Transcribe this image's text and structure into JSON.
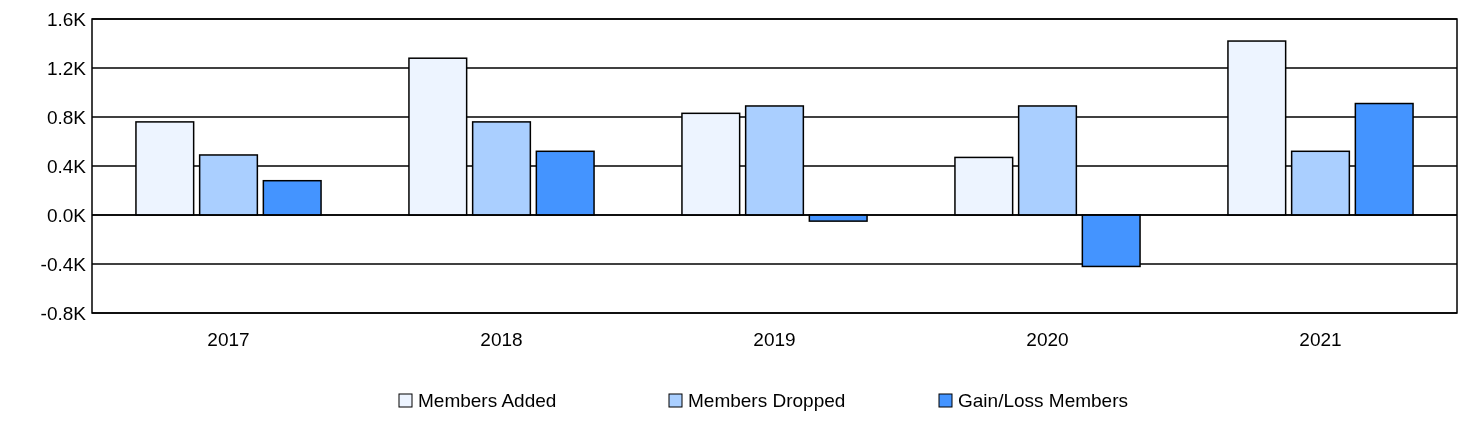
{
  "chart_data": {
    "type": "bar",
    "categories": [
      "2017",
      "2018",
      "2019",
      "2020",
      "2021"
    ],
    "series": [
      {
        "name": "Members Added",
        "color": "#edf4ff",
        "values": [
          0.76,
          1.28,
          0.83,
          0.47,
          1.42
        ]
      },
      {
        "name": "Members Dropped",
        "color": "#aacfff",
        "values": [
          0.49,
          0.76,
          0.89,
          0.89,
          0.52
        ]
      },
      {
        "name": "Gain/Loss Members",
        "color": "#4494ff",
        "values": [
          0.28,
          0.52,
          -0.05,
          -0.42,
          0.91
        ]
      }
    ],
    "ylim": [
      -0.8,
      1.6
    ],
    "yticks": [
      {
        "value": -0.8,
        "label": "-0.8K"
      },
      {
        "value": -0.4,
        "label": "-0.4K"
      },
      {
        "value": 0,
        "label": "0.0K"
      },
      {
        "value": 0.4,
        "label": "0.4K"
      },
      {
        "value": 0.8,
        "label": "0.8K"
      },
      {
        "value": 1.2,
        "label": "1.2K"
      },
      {
        "value": 1.6,
        "label": "1.6K"
      }
    ],
    "grid": "y",
    "legend": "bottom"
  }
}
